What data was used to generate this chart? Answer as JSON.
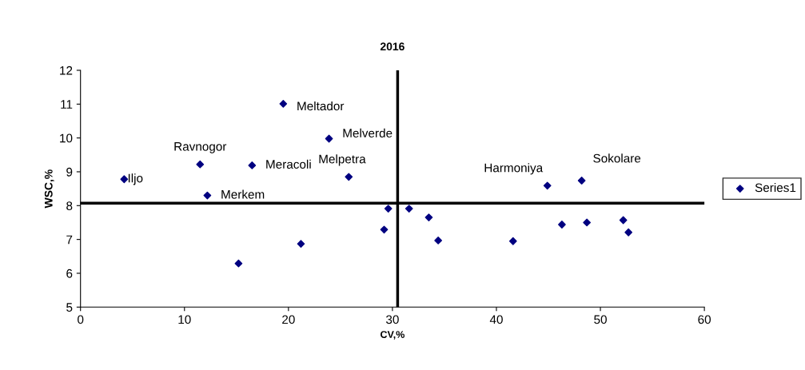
{
  "chart_data": {
    "type": "scatter",
    "title": "2016",
    "xlabel": "CV,%",
    "ylabel": "WSC,%",
    "x": [
      4.2,
      11.5,
      12.2,
      16.5,
      19.5,
      23.9,
      25.8,
      15.2,
      21.2,
      29.6,
      29.2,
      31.6,
      33.5,
      34.4,
      41.6,
      44.9,
      48.2,
      46.3,
      48.7,
      52.2,
      52.7
    ],
    "series": [
      {
        "name": "Series1",
        "color": "#000080",
        "values": [
          8.78,
          9.22,
          8.3,
          9.19,
          11.01,
          9.98,
          8.85,
          6.29,
          6.87,
          7.91,
          7.29,
          7.91,
          7.65,
          6.97,
          6.95,
          8.59,
          8.74,
          7.44,
          7.5,
          7.57,
          7.21
        ]
      }
    ],
    "annotations": [
      {
        "text": "Iljo",
        "x": 4.2,
        "y": 8.78
      },
      {
        "text": "Ravnogor",
        "x": 11.5,
        "y": 9.22
      },
      {
        "text": "Merkem",
        "x": 12.2,
        "y": 8.3
      },
      {
        "text": "Meracoli",
        "x": 16.5,
        "y": 9.19
      },
      {
        "text": "Meltador",
        "x": 19.5,
        "y": 11.01
      },
      {
        "text": "Melverde",
        "x": 23.9,
        "y": 9.98
      },
      {
        "text": "Melpetra",
        "x": 25.8,
        "y": 8.85
      },
      {
        "text": "Harmoniya",
        "x": 44.9,
        "y": 8.59
      },
      {
        "text": "Sokolare",
        "x": 48.2,
        "y": 8.74
      }
    ],
    "ref_lines": [
      {
        "axis": "x",
        "value": 30.5,
        "label": null,
        "color": "#000000"
      },
      {
        "axis": "y",
        "value": 8.07,
        "label": null,
        "color": "#000000"
      }
    ],
    "xlim": [
      0,
      60
    ],
    "xticks": [
      0,
      10,
      20,
      30,
      40,
      50,
      60
    ],
    "ylim": [
      5,
      12
    ],
    "yticks": [
      5,
      6,
      7,
      8,
      9,
      10,
      11,
      12
    ],
    "grid": false,
    "legend": "right",
    "marker": "diamond"
  }
}
